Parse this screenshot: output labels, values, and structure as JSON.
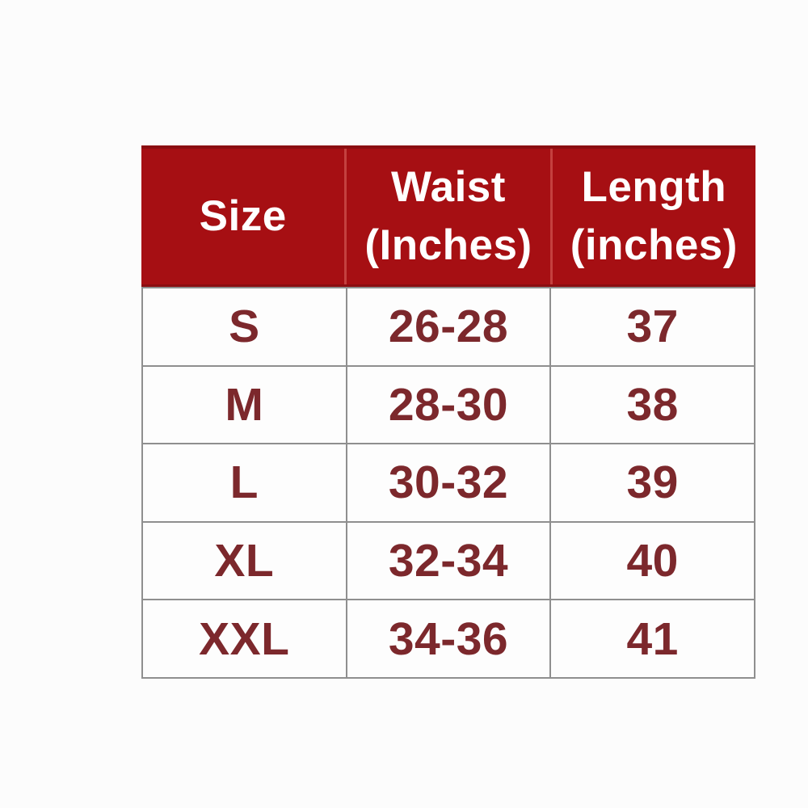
{
  "theme": {
    "page_bg": "#fcfcfc",
    "header_bg": "#a60f13",
    "header_edge": "#8b0e11",
    "header_divider": "#c4403f",
    "header_ink": "#ffffff",
    "body_ink": "#7c282c",
    "grid_line": "#8f8f8f",
    "cell_bg": "#fdfdfd"
  },
  "table": {
    "headers": [
      {
        "line1": "Size",
        "line2": ""
      },
      {
        "line1": "Waist",
        "line2": "(Inches)"
      },
      {
        "line1": "Length",
        "line2": "(inches)"
      }
    ],
    "rows": [
      {
        "size": "S",
        "waist": "26-28",
        "length": "37"
      },
      {
        "size": "M",
        "waist": "28-30",
        "length": "38"
      },
      {
        "size": "L",
        "waist": "30-32",
        "length": "39"
      },
      {
        "size": "XL",
        "waist": "32-34",
        "length": "40"
      },
      {
        "size": "XXL",
        "waist": "34-36",
        "length": "41"
      }
    ]
  },
  "chart_data": {
    "type": "table",
    "title": "",
    "columns": [
      "Size",
      "Waist (Inches)",
      "Length (inches)"
    ],
    "rows": [
      [
        "S",
        "26-28",
        "37"
      ],
      [
        "M",
        "28-30",
        "38"
      ],
      [
        "L",
        "30-32",
        "39"
      ],
      [
        "XL",
        "32-34",
        "40"
      ],
      [
        "XXL",
        "34-36",
        "41"
      ]
    ]
  }
}
